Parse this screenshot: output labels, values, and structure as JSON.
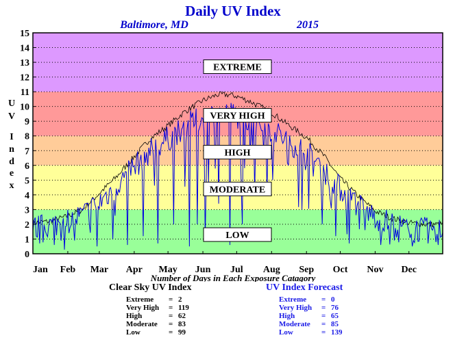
{
  "chart_data": {
    "type": "line",
    "title": "Daily UV Index",
    "location": "Baltimore, MD",
    "year": "2015",
    "ylabel": "UV Index",
    "xlabel": "Number of Days in Each Exposure Catagory",
    "ylim": [
      0,
      15
    ],
    "yticks": [
      "0",
      "1",
      "2",
      "3",
      "4",
      "5",
      "6",
      "7",
      "8",
      "9",
      "10",
      "11",
      "12",
      "13",
      "14",
      "15"
    ],
    "xlim": [
      1,
      365
    ],
    "months": [
      {
        "label": "Jan",
        "day": 1
      },
      {
        "label": "Feb",
        "day": 32
      },
      {
        "label": "Mar",
        "day": 60
      },
      {
        "label": "Apr",
        "day": 91
      },
      {
        "label": "May",
        "day": 121
      },
      {
        "label": "Jun",
        "day": 152
      },
      {
        "label": "Jul",
        "day": 182
      },
      {
        "label": "Aug",
        "day": 213
      },
      {
        "label": "Sep",
        "day": 244
      },
      {
        "label": "Oct",
        "day": 274
      },
      {
        "label": "Nov",
        "day": 305
      },
      {
        "label": "Dec",
        "day": 335
      }
    ],
    "bands": [
      {
        "label": "LOW",
        "from": 0,
        "to": 3,
        "color": "#99ff99",
        "label_y": 1.3
      },
      {
        "label": "MODERATE",
        "from": 3,
        "to": 6,
        "color": "#ffff99",
        "label_y": 4.4
      },
      {
        "label": "HIGH",
        "from": 6,
        "to": 8,
        "color": "#ffcc99",
        "label_y": 6.9
      },
      {
        "label": "VERY HIGH",
        "from": 8,
        "to": 11,
        "color": "#ff9999",
        "label_y": 9.4
      },
      {
        "label": "EXTREME",
        "from": 11,
        "to": 15,
        "color": "#dd99ff",
        "label_y": 12.7
      }
    ],
    "grid": true,
    "series": [
      {
        "name": "Clear Sky UV Index",
        "color": "#000000",
        "knots": [
          [
            1,
            2.1
          ],
          [
            15,
            2.2
          ],
          [
            30,
            2.5
          ],
          [
            45,
            3.0
          ],
          [
            60,
            4.1
          ],
          [
            75,
            5.2
          ],
          [
            91,
            6.6
          ],
          [
            105,
            7.8
          ],
          [
            121,
            8.7
          ],
          [
            135,
            9.6
          ],
          [
            152,
            10.4
          ],
          [
            165,
            10.8
          ],
          [
            175,
            10.8
          ],
          [
            182,
            10.7
          ],
          [
            195,
            10.3
          ],
          [
            213,
            9.6
          ],
          [
            225,
            8.9
          ],
          [
            244,
            7.9
          ],
          [
            260,
            6.6
          ],
          [
            274,
            5.1
          ],
          [
            290,
            3.9
          ],
          [
            305,
            2.9
          ],
          [
            320,
            2.4
          ],
          [
            335,
            2.1
          ],
          [
            350,
            2.0
          ],
          [
            365,
            2.0
          ]
        ],
        "amplitude": 0.35
      },
      {
        "name": "UV Index Forecast",
        "color": "#0000e0",
        "knots": [
          [
            1,
            1.7
          ],
          [
            15,
            1.9
          ],
          [
            30,
            2.2
          ],
          [
            45,
            2.6
          ],
          [
            60,
            3.5
          ],
          [
            75,
            4.6
          ],
          [
            91,
            5.9
          ],
          [
            105,
            7.0
          ],
          [
            121,
            7.8
          ],
          [
            135,
            8.6
          ],
          [
            152,
            9.2
          ],
          [
            165,
            9.5
          ],
          [
            175,
            9.5
          ],
          [
            182,
            9.4
          ],
          [
            195,
            9.1
          ],
          [
            213,
            8.4
          ],
          [
            225,
            7.8
          ],
          [
            244,
            6.9
          ],
          [
            260,
            5.6
          ],
          [
            274,
            4.4
          ],
          [
            290,
            3.3
          ],
          [
            305,
            2.5
          ],
          [
            320,
            2.0
          ],
          [
            335,
            1.7
          ],
          [
            350,
            1.6
          ],
          [
            365,
            1.6
          ]
        ],
        "amplitude": 0.9,
        "dips": [
          [
            20,
            0.6
          ],
          [
            38,
            0.9
          ],
          [
            58,
            0.5
          ],
          [
            72,
            1.0
          ],
          [
            85,
            0.6
          ],
          [
            99,
            1.2
          ],
          [
            112,
            0.7
          ],
          [
            126,
            2.0
          ],
          [
            140,
            0.5
          ],
          [
            147,
            2.0
          ],
          [
            154,
            1.0
          ],
          [
            166,
            3.4
          ],
          [
            176,
            0.6
          ],
          [
            187,
            2.0
          ],
          [
            198,
            4.0
          ],
          [
            214,
            5.0
          ],
          [
            228,
            6.0
          ],
          [
            240,
            3.0
          ],
          [
            258,
            2.0
          ],
          [
            270,
            1.2
          ],
          [
            282,
            0.7
          ],
          [
            296,
            1.6
          ],
          [
            310,
            0.6
          ],
          [
            322,
            0.9
          ],
          [
            338,
            0.5
          ],
          [
            352,
            0.7
          ],
          [
            361,
            0.6
          ]
        ]
      }
    ],
    "stats": {
      "clear_sky": {
        "title": "Clear Sky UV Index",
        "rows": [
          {
            "label": "Extreme",
            "value": "2"
          },
          {
            "label": "Very High",
            "value": "119"
          },
          {
            "label": "High",
            "value": "62"
          },
          {
            "label": "Moderate",
            "value": "83"
          },
          {
            "label": "Low",
            "value": "99"
          }
        ]
      },
      "forecast": {
        "title": "UV Index Forecast",
        "rows": [
          {
            "label": "Extreme",
            "value": "0"
          },
          {
            "label": "Very High",
            "value": "76"
          },
          {
            "label": "High",
            "value": "65"
          },
          {
            "label": "Moderate",
            "value": "85"
          },
          {
            "label": "Low",
            "value": "139"
          }
        ]
      }
    },
    "colors": {
      "clear_sky": "#000000",
      "forecast": "#0000e0",
      "title": "#0000cc"
    }
  }
}
